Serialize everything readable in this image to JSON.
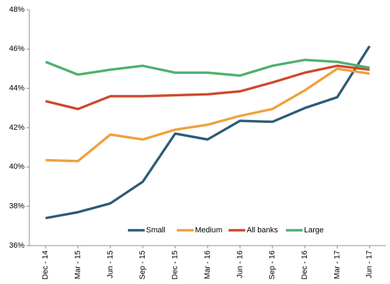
{
  "chart_data": {
    "type": "line",
    "categories": [
      "Dec - 14",
      "Mar - 15",
      "Jun - 15",
      "Sep - 15",
      "Dec - 15",
      "Mar - 16",
      "Jun - 16",
      "Sep - 16",
      "Dec - 16",
      "Mar - 17",
      "Jun - 17"
    ],
    "series": [
      {
        "name": "Small",
        "color": "#2e5b78",
        "values": [
          37.4,
          37.7,
          38.15,
          39.25,
          41.7,
          41.4,
          42.35,
          42.3,
          43.0,
          43.55,
          46.15
        ]
      },
      {
        "name": "Medium",
        "color": "#f0a03c",
        "values": [
          40.35,
          40.3,
          41.65,
          41.4,
          41.9,
          42.15,
          42.6,
          42.95,
          43.9,
          45.0,
          44.75
        ]
      },
      {
        "name": "All banks",
        "color": "#d0482a",
        "values": [
          43.35,
          42.95,
          43.6,
          43.6,
          43.65,
          43.7,
          43.85,
          44.3,
          44.8,
          45.15,
          44.95
        ]
      },
      {
        "name": "Large",
        "color": "#4fb06c",
        "values": [
          45.35,
          44.7,
          44.95,
          45.15,
          44.8,
          44.8,
          44.65,
          45.15,
          45.45,
          45.35,
          45.05
        ]
      }
    ],
    "ylim": [
      36,
      48
    ],
    "yticks": [
      {
        "value": 36,
        "label": "36%"
      },
      {
        "value": 38,
        "label": "38%"
      },
      {
        "value": 40,
        "label": "40%"
      },
      {
        "value": 42,
        "label": "42%"
      },
      {
        "value": 44,
        "label": "44%"
      },
      {
        "value": 46,
        "label": "46%"
      },
      {
        "value": 48,
        "label": "48%"
      }
    ],
    "grid": false,
    "legend": "lower-right"
  }
}
